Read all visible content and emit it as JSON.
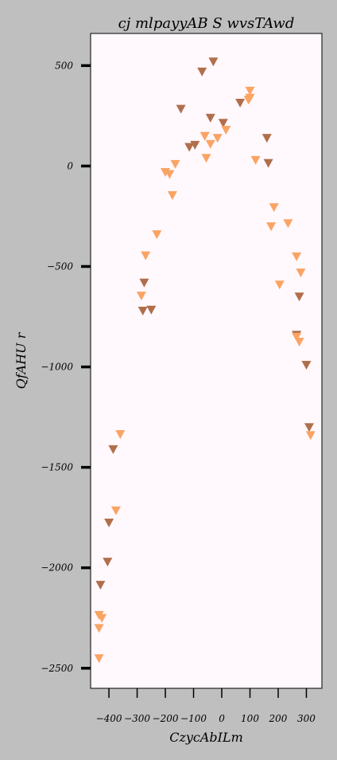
{
  "chart_data": {
    "type": "scatter",
    "title": "cj mlpayyAB S wvsTAwd",
    "xlabel": "CzycAbILm",
    "ylabel": "QfAHU r",
    "xlim": [
      -465,
      355
    ],
    "ylim": [
      -2600,
      660
    ],
    "xticks": [
      -400,
      -300,
      -200,
      -100,
      0,
      100,
      200,
      300
    ],
    "xtick_labels": [
      "−400",
      "−300",
      "−200",
      "−100",
      "0",
      "100",
      "200",
      "300"
    ],
    "yticks": [
      500,
      0,
      -500,
      -1000,
      -1500,
      -2000,
      -2500
    ],
    "ytick_labels": [
      "500",
      "0",
      "−500",
      "−1000",
      "−1500",
      "−2000",
      "−2500"
    ],
    "grid": false,
    "legend": "none",
    "marker": "triangle-down",
    "plot_background": "#fff8fd",
    "figure_background": "#bfbfbf",
    "series": [
      {
        "color": "#b06f4b",
        "points": [
          [
            -30,
            520
          ],
          [
            -70,
            470
          ],
          [
            -145,
            285
          ],
          [
            -40,
            240
          ],
          [
            5,
            215
          ],
          [
            65,
            315
          ],
          [
            160,
            140
          ],
          [
            165,
            15
          ],
          [
            -115,
            95
          ],
          [
            -95,
            105
          ],
          [
            -275,
            -580
          ],
          [
            -280,
            -720
          ],
          [
            -250,
            -715
          ],
          [
            275,
            -650
          ],
          [
            265,
            -840
          ],
          [
            300,
            -990
          ],
          [
            310,
            -1300
          ],
          [
            -385,
            -1410
          ],
          [
            -400,
            -1775
          ],
          [
            -405,
            -1970
          ],
          [
            -430,
            -2085
          ]
        ]
      },
      {
        "color": "#faa463",
        "points": [
          [
            100,
            375
          ],
          [
            95,
            330
          ],
          [
            100,
            340
          ],
          [
            -60,
            150
          ],
          [
            -40,
            110
          ],
          [
            -15,
            140
          ],
          [
            15,
            180
          ],
          [
            -55,
            40
          ],
          [
            120,
            30
          ],
          [
            -165,
            10
          ],
          [
            -200,
            -30
          ],
          [
            -185,
            -40
          ],
          [
            -175,
            -145
          ],
          [
            -230,
            -340
          ],
          [
            -270,
            -445
          ],
          [
            -285,
            -645
          ],
          [
            185,
            -205
          ],
          [
            235,
            -285
          ],
          [
            175,
            -300
          ],
          [
            265,
            -450
          ],
          [
            280,
            -530
          ],
          [
            205,
            -590
          ],
          [
            265,
            -850
          ],
          [
            275,
            -875
          ],
          [
            315,
            -1340
          ],
          [
            -360,
            -1335
          ],
          [
            -375,
            -1715
          ],
          [
            -435,
            -2235
          ],
          [
            -425,
            -2250
          ],
          [
            -435,
            -2300
          ],
          [
            -435,
            -2450
          ]
        ]
      }
    ]
  }
}
